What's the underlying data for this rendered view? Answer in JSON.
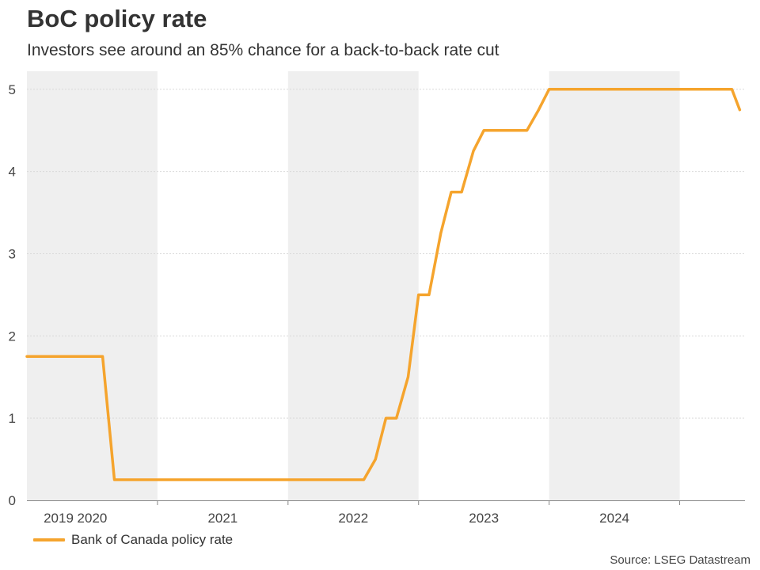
{
  "title": "BoC policy rate",
  "subtitle": "Investors see around an 85% chance for a back-to-back rate cut",
  "source": "Source: LSEG Datastream",
  "colors": {
    "line": "#F5A42D",
    "shade": "#EFEFEF",
    "grid": "#D9D9D9",
    "axis": "#888888"
  },
  "chart_data": {
    "type": "line",
    "title": "BoC policy rate",
    "xlabel": "",
    "ylabel": "",
    "xlim": [
      2019.0,
      2024.5
    ],
    "ylim": [
      0,
      5.2
    ],
    "y_ticks": [
      0,
      1,
      2,
      3,
      4,
      5
    ],
    "x_ticks": [
      2019.0,
      2020.0,
      2021.0,
      2022.0,
      2023.0,
      2024.0
    ],
    "x_tick_labels": [
      {
        "label": "2019",
        "x": 2019.0
      },
      {
        "label": "2020",
        "x": 2019.72
      },
      {
        "label": "2021",
        "x": 2020.72
      },
      {
        "label": "2022",
        "x": 2021.72
      },
      {
        "label": "2023",
        "x": 2022.72
      },
      {
        "label": "2024",
        "x": 2023.72
      }
    ],
    "shaded_years": [
      2019,
      2021,
      2023
    ],
    "grid": true,
    "legend": "bottom-left",
    "series": [
      {
        "name": "Bank of Canada policy rate",
        "x": [
          2019.0,
          2019.58,
          2019.67,
          2021.58,
          2021.67,
          2021.75,
          2021.83,
          2021.92,
          2022.0,
          2022.08,
          2022.17,
          2022.25,
          2022.33,
          2022.42,
          2022.5,
          2022.58,
          2022.67,
          2022.83,
          2022.92,
          2023.0,
          2023.5,
          2023.83,
          2023.92,
          2024.0,
          2024.4,
          2024.46
        ],
        "y": [
          1.75,
          1.75,
          0.25,
          0.25,
          0.5,
          1.0,
          1.0,
          1.5,
          2.5,
          2.5,
          3.25,
          3.75,
          3.75,
          4.25,
          4.5,
          4.5,
          4.5,
          4.5,
          4.75,
          5.0,
          5.0,
          5.0,
          5.0,
          5.0,
          5.0,
          4.75
        ]
      }
    ]
  }
}
